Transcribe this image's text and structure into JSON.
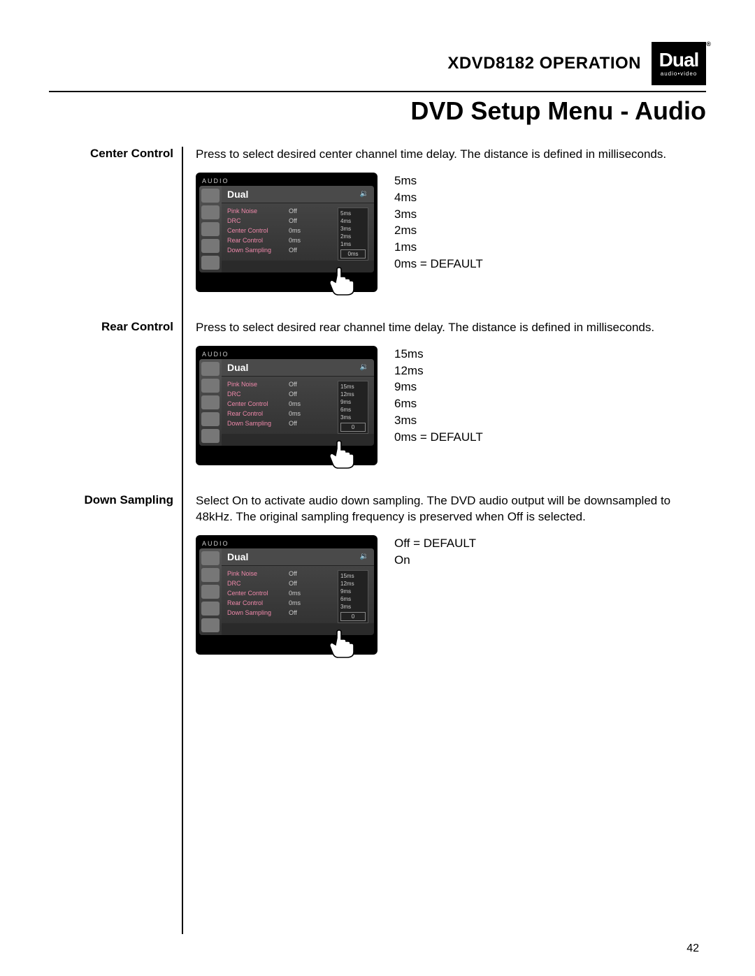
{
  "header": {
    "model": "XDVD8182",
    "operation": "OPERATION",
    "logo_main": "Dual",
    "logo_sub": "audio•video"
  },
  "page_title": "DVD Setup Menu - Audio",
  "page_number": "42",
  "screen_common": {
    "top_label": "AUDIO",
    "logo": "Dual",
    "menu_items": [
      {
        "k": "Pink Noise",
        "v": "Off"
      },
      {
        "k": "DRC",
        "v": "Off"
      },
      {
        "k": "Center Control",
        "v": "0ms"
      },
      {
        "k": "Rear  Control",
        "v": "0ms"
      },
      {
        "k": "Down  Sampling",
        "v": "Off"
      }
    ]
  },
  "sections": [
    {
      "label": "Center Control",
      "desc": "Press to select desired center channel time delay. The distance is defined in milliseconds.",
      "options": [
        "5ms",
        "4ms",
        "3ms",
        "2ms",
        "1ms",
        "0ms = DEFAULT"
      ],
      "submenu": [
        "5ms",
        "4ms",
        "3ms",
        "2ms",
        "1ms"
      ],
      "submenu_sel": "0ms"
    },
    {
      "label": "Rear Control",
      "desc": "Press to select desired rear channel time delay. The distance is defined in milliseconds.",
      "options": [
        "15ms",
        "12ms",
        "9ms",
        "6ms",
        "3ms",
        "0ms = DEFAULT"
      ],
      "submenu": [
        "15ms",
        "12ms",
        "9ms",
        "6ms",
        "3ms"
      ],
      "submenu_sel": "0"
    },
    {
      "label": "Down Sampling",
      "desc": "Select On to activate audio down sampling. The DVD audio output will be downsampled to 48kHz. The original sampling frequency is preserved when Off is selected.",
      "options": [
        "Off = DEFAULT",
        "On"
      ],
      "submenu": [
        "15ms",
        "12ms",
        "9ms",
        "6ms",
        "3ms"
      ],
      "submenu_sel": "0"
    }
  ]
}
